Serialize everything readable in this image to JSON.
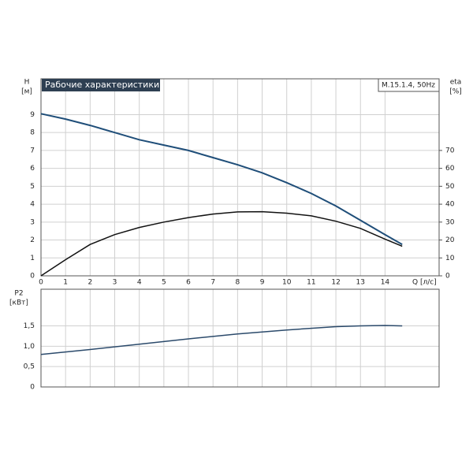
{
  "chart_data": [
    {
      "type": "line",
      "title": "Рабочие характеристики",
      "subtitle": "M.15.1.4, 50Hz",
      "x_label": "Q [л/с]",
      "y_unit": "[м]",
      "y2_unit": "[%]",
      "x": [
        0,
        1,
        2,
        3,
        4,
        5,
        6,
        7,
        8,
        9,
        10,
        11,
        12,
        13,
        14,
        14.7
      ],
      "series": [
        {
          "name": "H",
          "color": "#1f4e79",
          "axis": "y",
          "values": [
            9.05,
            8.75,
            8.4,
            8.0,
            7.6,
            7.3,
            7.0,
            6.6,
            6.2,
            5.75,
            5.2,
            4.6,
            3.9,
            3.1,
            2.3,
            1.75
          ]
        },
        {
          "name": "eta",
          "color": "#111111",
          "axis": "y2",
          "values": [
            0,
            9,
            17.5,
            23,
            27,
            30,
            32.5,
            34.5,
            35.7,
            35.8,
            35,
            33.5,
            30.5,
            26.5,
            20.5,
            16.5
          ]
        }
      ],
      "xlim": [
        0,
        16.2
      ],
      "xticks": [
        0,
        1,
        2,
        3,
        4,
        5,
        6,
        7,
        8,
        9,
        10,
        11,
        12,
        13,
        14
      ],
      "ylim": [
        0,
        11
      ],
      "yticks": [
        0,
        1,
        2,
        3,
        4,
        5,
        6,
        7,
        8,
        9
      ],
      "y2lim": [
        0,
        110
      ],
      "y2ticks": [
        0,
        10,
        20,
        30,
        40,
        50,
        60,
        70
      ],
      "grid": true
    },
    {
      "type": "line",
      "y_unit": "[кВт]",
      "x": [
        0,
        2,
        4,
        6,
        8,
        10,
        12,
        13,
        14,
        14.7
      ],
      "series": [
        {
          "name": "P2",
          "color": "#2b4a6b",
          "axis": "y",
          "values": [
            0.8,
            0.92,
            1.05,
            1.18,
            1.3,
            1.4,
            1.48,
            1.5,
            1.51,
            1.5
          ]
        }
      ],
      "xlim": [
        0,
        16.2
      ],
      "ylim": [
        0,
        2.4
      ],
      "yticks": [
        0,
        {
          "value": 0.5,
          "label": "0,5"
        },
        {
          "value": 1,
          "label": "1,0"
        },
        {
          "value": 1.5,
          "label": "1,5"
        }
      ],
      "grid": true
    }
  ]
}
